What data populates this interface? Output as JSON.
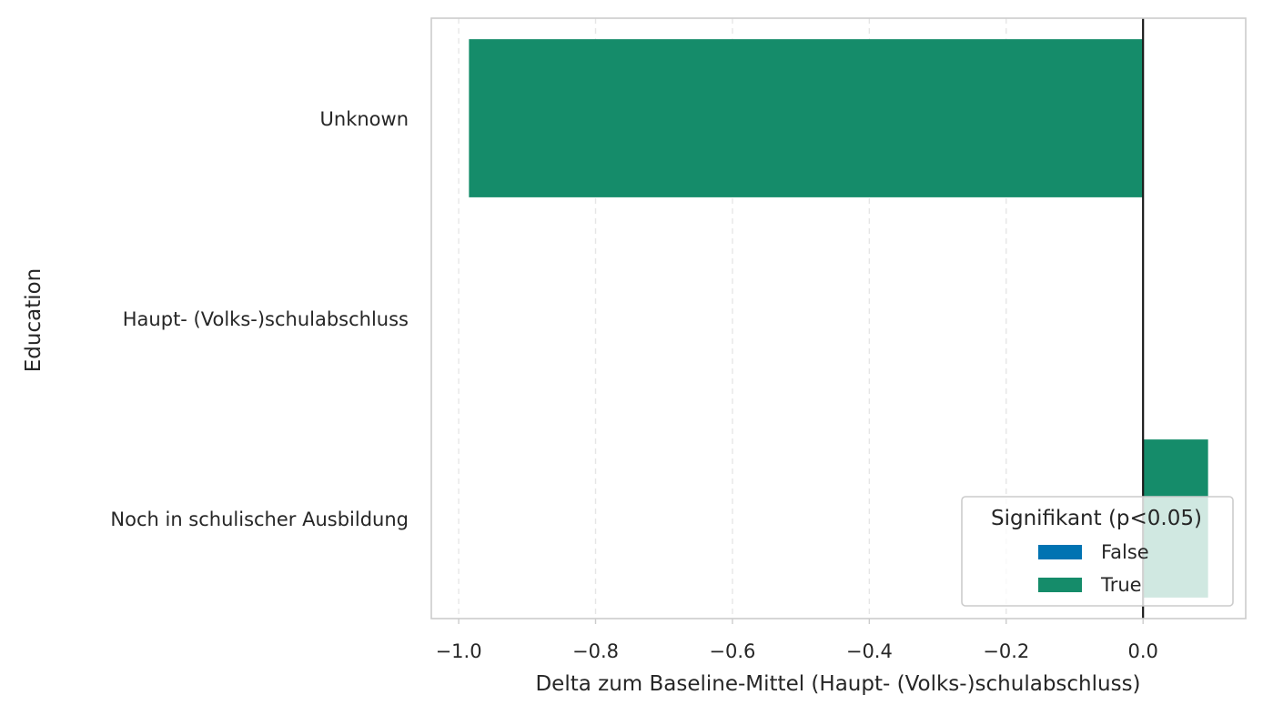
{
  "chart_data": {
    "type": "bar",
    "orientation": "horizontal",
    "categories": [
      "Unknown",
      "Haupt- (Volks-)schulabschluss",
      "Noch in schulischer Ausbildung"
    ],
    "values": [
      -0.985,
      0.0,
      0.095
    ],
    "significant": [
      true,
      true,
      true
    ],
    "xlabel": "Delta zum Baseline-Mittel (Haupt- (Volks-)schulabschluss)",
    "ylabel": "Education",
    "xlim": [
      -1.04,
      0.15
    ],
    "xticks": [
      -1.0,
      -0.8,
      -0.6,
      -0.4,
      -0.2,
      0.0
    ],
    "xtick_labels": [
      "−1.0",
      "−0.8",
      "−0.6",
      "−0.4",
      "−0.2",
      "0.0"
    ],
    "grid": "x-dashed",
    "reference_line_x": 0.0,
    "legend": {
      "title": "Signifikant (p<0.05)",
      "placement": "lower-right",
      "entries": [
        {
          "label": "False",
          "color": "#0173b2"
        },
        {
          "label": "True",
          "color": "#158c6a"
        }
      ]
    },
    "colors": {
      "false": "#0173b2",
      "true": "#158c6a"
    }
  }
}
